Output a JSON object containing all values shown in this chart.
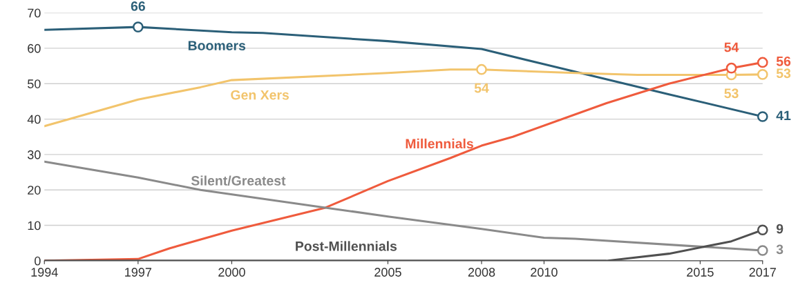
{
  "chart_data": {
    "type": "line",
    "xlim": [
      1994,
      2017
    ],
    "xticks": [
      1994,
      1997,
      2000,
      2005,
      2008,
      2010,
      2015,
      2017
    ],
    "ylim": [
      0,
      70
    ],
    "yticks": [
      0,
      10,
      20,
      30,
      40,
      50,
      60,
      70
    ],
    "grid": "y",
    "legend": false,
    "series": [
      {
        "name": "Boomers",
        "color": "#2b5f78",
        "x": [
          1994,
          1997,
          2000,
          2001,
          2005,
          2008,
          2010,
          2014,
          2017
        ],
        "values": [
          65.2,
          66,
          64.5,
          64.3,
          62,
          59.8,
          55.5,
          47,
          40.7
        ]
      },
      {
        "name": "Gen Xers",
        "color": "#f2c46c",
        "x": [
          1994,
          1997,
          1999,
          2000,
          2005,
          2007,
          2008,
          2011,
          2013,
          2015,
          2016,
          2017
        ],
        "values": [
          38,
          45.5,
          49,
          51,
          53,
          54,
          54,
          53,
          52.5,
          52.5,
          52.5,
          52.6
        ]
      },
      {
        "name": "Millennials",
        "color": "#ef5b3d",
        "x": [
          1994,
          1997,
          1998,
          2000,
          2003,
          2005,
          2007,
          2008,
          2009,
          2012,
          2014,
          2016,
          2017
        ],
        "values": [
          0,
          0.5,
          3.5,
          8.5,
          15,
          22.5,
          29,
          32.5,
          35,
          44.5,
          50,
          54.4,
          56
        ]
      },
      {
        "name": "Silent/Greatest",
        "color": "#8a8a8a",
        "x": [
          1994,
          1997,
          1999,
          2003,
          2005,
          2008,
          2010,
          2011,
          2015,
          2017
        ],
        "values": [
          28,
          23.5,
          20,
          15,
          12.5,
          9,
          6.5,
          6.2,
          4,
          2.9
        ]
      },
      {
        "name": "Post-Millennials",
        "color": "#505050",
        "x": [
          1994,
          2012,
          2014,
          2016,
          2017
        ],
        "values": [
          0,
          0,
          2,
          5.5,
          8.7
        ]
      },
      {
        "type": "scatter",
        "marker": "circle",
        "color": "#2b5f78",
        "x": [
          1997,
          2017
        ],
        "values": [
          66,
          40.7
        ],
        "value_labels": [
          "66",
          "41"
        ]
      },
      {
        "type": "scatter",
        "marker": "circle",
        "color": "#f2c46c",
        "x": [
          2008,
          2016,
          2017
        ],
        "values": [
          54,
          52.5,
          52.6
        ],
        "value_labels": [
          "54",
          "53",
          "53"
        ]
      },
      {
        "type": "scatter",
        "marker": "circle",
        "color": "#ef5b3d",
        "x": [
          2016,
          2017
        ],
        "values": [
          54.4,
          56
        ],
        "value_labels": [
          "54",
          "56"
        ]
      },
      {
        "type": "scatter",
        "marker": "circle",
        "color": "#8a8a8a",
        "x": [
          2017
        ],
        "values": [
          2.9
        ],
        "value_labels": [
          "3"
        ]
      },
      {
        "type": "scatter",
        "marker": "circle",
        "color": "#505050",
        "x": [
          2017
        ],
        "values": [
          8.7
        ],
        "value_labels": [
          "9"
        ]
      }
    ]
  }
}
